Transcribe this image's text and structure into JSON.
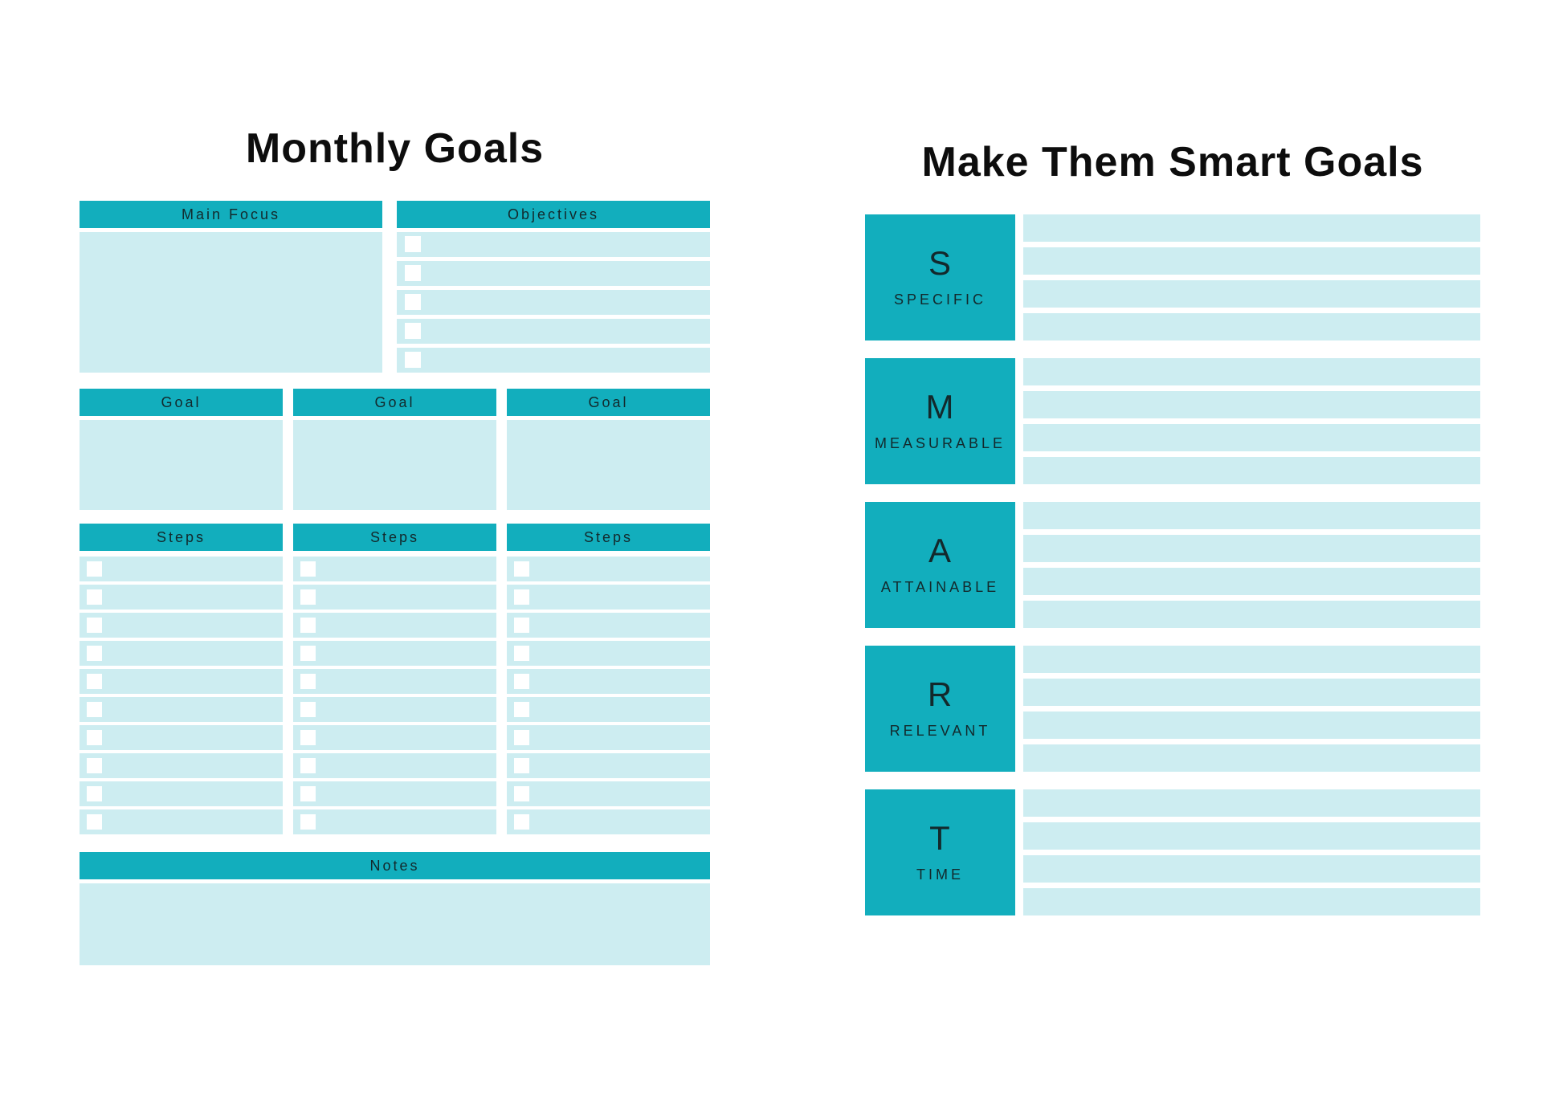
{
  "colors": {
    "teal": "#12aebd",
    "light_teal": "#cdedf1",
    "header_text": "#13292c",
    "title_text": "#0d0d0d"
  },
  "page_left": {
    "title": "Monthly Goals",
    "main_focus": {
      "header": "Main Focus"
    },
    "objectives": {
      "header": "Objectives",
      "rows": 5
    },
    "goals": [
      {
        "header": "Goal"
      },
      {
        "header": "Goal"
      },
      {
        "header": "Goal"
      }
    ],
    "steps": [
      {
        "header": "Steps",
        "rows": 10
      },
      {
        "header": "Steps",
        "rows": 10
      },
      {
        "header": "Steps",
        "rows": 10
      }
    ],
    "notes": {
      "header": "Notes"
    }
  },
  "page_right": {
    "title": "Make Them Smart Goals",
    "blocks": [
      {
        "letter": "S",
        "label": "SPECIFIC",
        "lines": 4
      },
      {
        "letter": "M",
        "label": "MEASURABLE",
        "lines": 4
      },
      {
        "letter": "A",
        "label": "ATTAINABLE",
        "lines": 4
      },
      {
        "letter": "R",
        "label": "RELEVANT",
        "lines": 4
      },
      {
        "letter": "T",
        "label": "TIME",
        "lines": 4
      }
    ]
  }
}
